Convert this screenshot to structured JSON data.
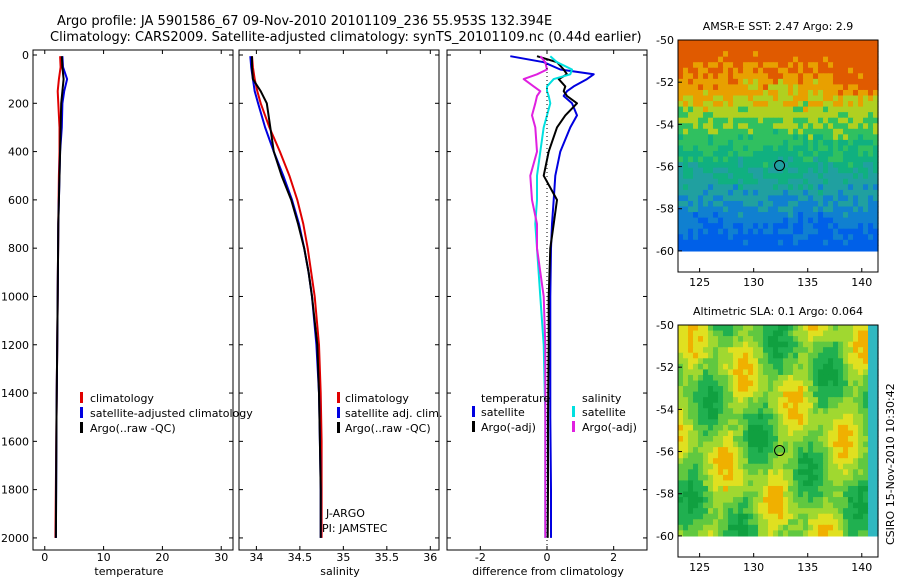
{
  "titles": {
    "line1": "Argo profile: JA 5901586_67 09-Nov-2010 20101109_236 55.953S 132.394E",
    "line2": "Climatology: CARS2009. Satellite-adjusted climatology: synTS_20101109.nc (0.44d earlier)"
  },
  "stamp": "CSIRO 15-Nov-2010 10:30:42",
  "colors": {
    "red": "#e00000",
    "blue": "#0000e0",
    "black": "#000000",
    "cyan": "#00e0e0",
    "magenta": "#e020e0"
  },
  "chart_data": [
    {
      "type": "line",
      "name": "temperature-profile",
      "xlabel": "temperature",
      "xlim": [
        -2,
        32
      ],
      "ylim": [
        0,
        2050
      ],
      "y_reversed": true,
      "xticks": [
        0,
        10,
        20,
        30
      ],
      "yticks": [
        0,
        200,
        400,
        600,
        800,
        1000,
        1200,
        1400,
        1600,
        1800,
        2000
      ],
      "depth": [
        5,
        50,
        100,
        150,
        200,
        300,
        400,
        500,
        700,
        1000,
        1500,
        2000
      ],
      "series": [
        {
          "name": "climatology",
          "color": "red",
          "x": [
            2.6,
            2.7,
            2.4,
            2.2,
            2.3,
            2.5,
            2.5,
            2.4,
            2.3,
            2.2,
            2.0,
            1.8
          ]
        },
        {
          "name": "satellite-adjusted climatology",
          "color": "blue",
          "x": [
            3.0,
            3.1,
            3.8,
            3.3,
            3.0,
            2.9,
            2.6,
            2.5,
            2.3,
            2.2,
            2.0,
            1.9
          ]
        },
        {
          "name": "Argo(..raw -QC)",
          "color": "black",
          "x": [
            2.9,
            3.0,
            3.2,
            3.0,
            2.8,
            2.7,
            2.6,
            2.5,
            2.3,
            2.2,
            2.0,
            1.9
          ]
        }
      ],
      "legend": [
        "climatology",
        "satellite-adjusted climatology",
        "Argo(..raw -QC)"
      ],
      "legend_colors": [
        "red",
        "blue",
        "black"
      ]
    },
    {
      "type": "line",
      "name": "salinity-profile",
      "xlabel": "salinity",
      "xlim": [
        33.8,
        36.1
      ],
      "ylim": [
        0,
        2050
      ],
      "y_reversed": true,
      "xticks": [
        34,
        34.5,
        35,
        35.5,
        36
      ],
      "depth": [
        5,
        50,
        100,
        150,
        200,
        300,
        400,
        500,
        600,
        700,
        800,
        900,
        1000,
        1200,
        1400,
        1600,
        1800,
        2000
      ],
      "series": [
        {
          "name": "climatology",
          "color": "red",
          "x": [
            33.95,
            33.96,
            33.98,
            34.01,
            34.05,
            34.15,
            34.27,
            34.38,
            34.47,
            34.54,
            34.59,
            34.63,
            34.67,
            34.72,
            34.74,
            34.75,
            34.75,
            34.75
          ]
        },
        {
          "name": "satellite adj. clim.",
          "color": "blue",
          "x": [
            33.93,
            33.94,
            33.96,
            33.98,
            34.02,
            34.1,
            34.2,
            34.31,
            34.41,
            34.49,
            34.55,
            34.6,
            34.64,
            34.69,
            34.72,
            34.73,
            34.74,
            34.74
          ]
        },
        {
          "name": "Argo(..raw -QC)",
          "color": "black",
          "x": [
            33.95,
            33.95,
            33.96,
            34.05,
            34.12,
            34.16,
            34.2,
            34.29,
            34.4,
            34.48,
            34.55,
            34.6,
            34.64,
            34.7,
            34.72,
            34.73,
            34.74,
            34.74
          ]
        }
      ],
      "legend": [
        "climatology",
        "satellite adj. clim.",
        "Argo(..raw -QC)"
      ],
      "legend_colors": [
        "red",
        "blue",
        "black"
      ],
      "annotations": [
        "J-ARGO",
        "PI: JAMSTEC"
      ]
    },
    {
      "type": "line",
      "name": "difference-profile",
      "xlabel": "difference from climatology",
      "xlim": [
        -3,
        3
      ],
      "ylim": [
        0,
        2050
      ],
      "y_reversed": true,
      "xticks": [
        -2,
        0,
        2
      ],
      "depth": [
        5,
        30,
        60,
        80,
        100,
        130,
        150,
        170,
        200,
        250,
        300,
        400,
        500,
        600,
        700,
        800,
        1000,
        1200,
        1500,
        1800,
        2000
      ],
      "series": [
        {
          "name": "temperature satellite",
          "color": "blue",
          "x": [
            -1.1,
            -0.1,
            0.4,
            1.4,
            1.2,
            0.8,
            0.6,
            0.5,
            0.75,
            0.9,
            0.7,
            0.4,
            0.25,
            0.2,
            0.15,
            0.12,
            0.1,
            0.1,
            0.1,
            0.12,
            0.12
          ]
        },
        {
          "name": "temperature Argo(-adj)",
          "color": "black",
          "x": [
            -0.3,
            0.3,
            0.5,
            0.6,
            0.35,
            0.55,
            0.5,
            0.6,
            0.9,
            0.55,
            0.3,
            0.05,
            -0.1,
            0.3,
            0.2,
            0.1,
            0.05,
            0.05,
            0.03,
            0.03,
            0.02
          ]
        },
        {
          "name": "salinity satellite",
          "color": "cyan",
          "x": [
            0.1,
            0.3,
            0.75,
            0.7,
            0.2,
            0.0,
            0.0,
            0.05,
            0.1,
            0.0,
            -0.1,
            -0.2,
            -0.3,
            -0.3,
            -0.35,
            -0.3,
            -0.2,
            -0.1,
            -0.05,
            -0.05,
            -0.05
          ]
        },
        {
          "name": "salinity Argo(-adj)",
          "color": "magenta",
          "x": [
            -0.2,
            -0.05,
            0.0,
            -0.3,
            -0.7,
            -0.4,
            -0.2,
            -0.3,
            -0.35,
            -0.45,
            -0.35,
            -0.3,
            -0.5,
            -0.45,
            -0.3,
            -0.3,
            -0.1,
            -0.05,
            -0.05,
            -0.05,
            -0.05
          ]
        }
      ],
      "legend_titles": [
        "temperature",
        "salinity"
      ],
      "legend": [
        "satellite",
        "Argo(-adj)",
        "satellite",
        "Argo(-adj)"
      ],
      "legend_colors": [
        "blue",
        "black",
        "cyan",
        "magenta"
      ]
    },
    {
      "type": "heatmap",
      "name": "amsr-sst-map",
      "title": "AMSR-E SST: 2.47 Argo: 2.9",
      "xlim": [
        123,
        141.5
      ],
      "ylim": [
        -61,
        -50
      ],
      "xticks": [
        125,
        130,
        135,
        140
      ],
      "yticks": [
        -50,
        -52,
        -54,
        -56,
        -58,
        -60
      ],
      "data_ylim": [
        -60,
        -50
      ],
      "marker": {
        "lon": 132.394,
        "lat": -55.953
      },
      "colors_by_row": [
        "#e05a00",
        "#e8a000",
        "#b0d020",
        "#30c060",
        "#10b080",
        "#20a0a0",
        "#1080d0",
        "#0060e8"
      ]
    },
    {
      "type": "heatmap",
      "name": "altimetric-sla-map",
      "title": "Altimetric SLA: 0.1 Argo: 0.064",
      "xlim": [
        123,
        141.5
      ],
      "ylim": [
        -61,
        -50
      ],
      "xticks": [
        125,
        130,
        135,
        140
      ],
      "yticks": [
        -50,
        -52,
        -54,
        -56,
        -58,
        -60
      ],
      "data_ylim": [
        -60,
        -50
      ],
      "marker": {
        "lon": 132.394,
        "lat": -55.953
      },
      "palette": [
        "#10a040",
        "#20b050",
        "#60c840",
        "#a0d830",
        "#e0e020",
        "#f0b000",
        "#30b8c0"
      ]
    }
  ]
}
